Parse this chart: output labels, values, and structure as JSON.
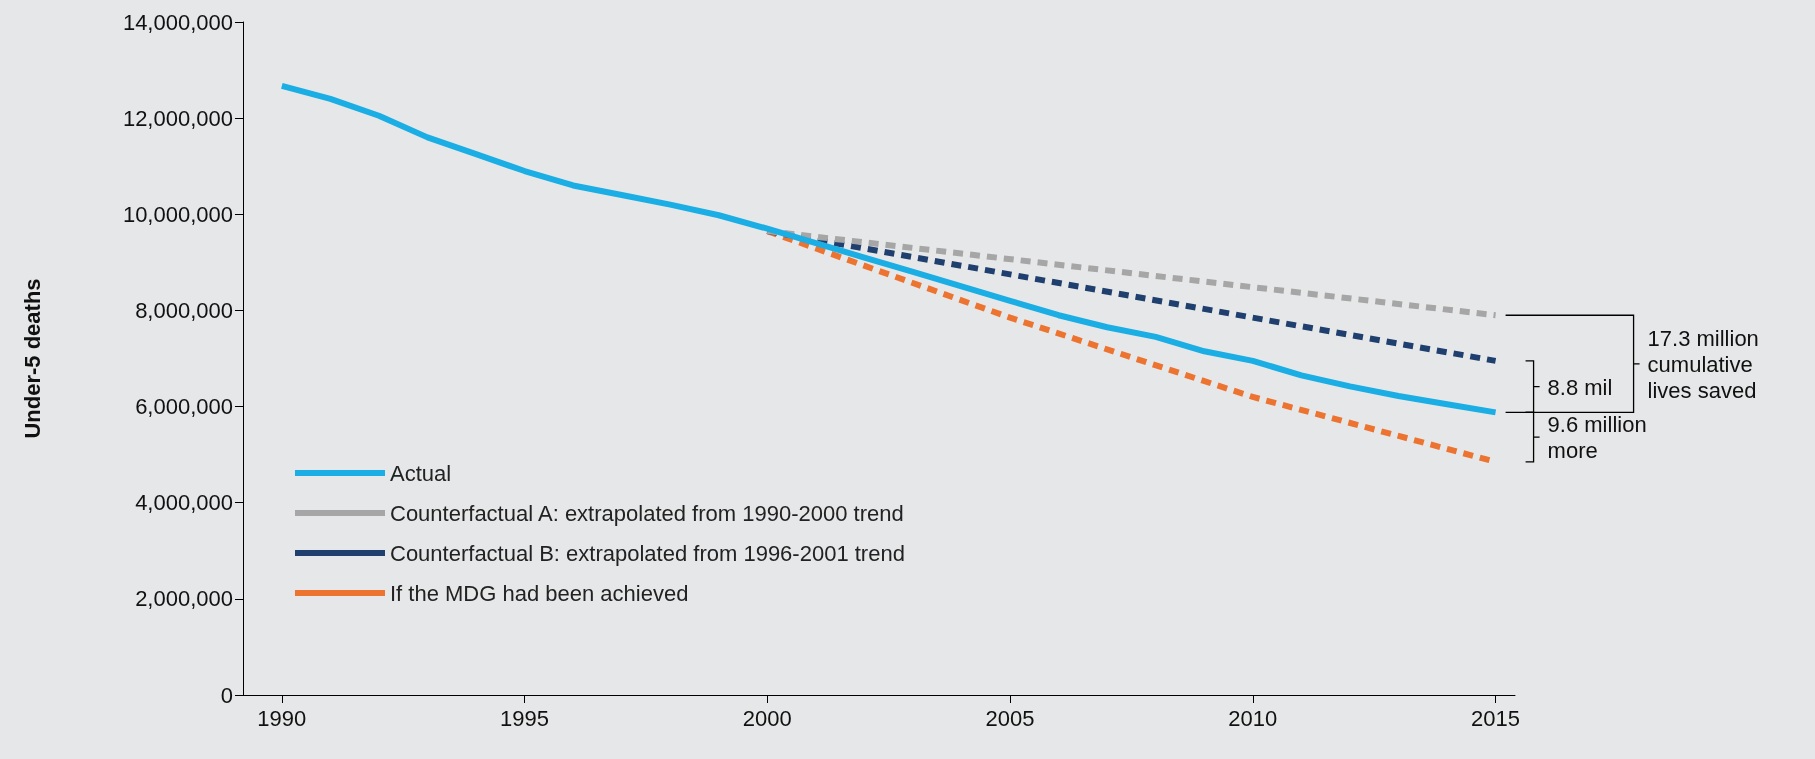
{
  "chart_data": {
    "type": "line",
    "ylabel": "Under-5 deaths",
    "xlim": [
      1989.2,
      2015.4
    ],
    "xticks": [
      1990,
      1995,
      2000,
      2005,
      2010,
      2015
    ],
    "ylim": [
      0,
      14000000
    ],
    "yticks": [
      0,
      {
        "value": 2000000,
        "label": "2,000,000"
      },
      {
        "value": 4000000,
        "label": "4,000,000"
      },
      {
        "value": 6000000,
        "label": "6,000,000"
      },
      {
        "value": 8000000,
        "label": "8,000,000"
      },
      {
        "value": 10000000,
        "label": "10,000,000"
      },
      {
        "value": 12000000,
        "label": "12,000,000"
      },
      {
        "value": 14000000,
        "label": "14,000,000"
      }
    ],
    "grid": false,
    "legend": "bottom left",
    "marker": "none",
    "series": [
      {
        "name": "Actual",
        "color": "#1aaee5",
        "line_style": "solid",
        "x": [
          1990,
          1991,
          1992,
          1993,
          1994,
          1995,
          1996,
          1997,
          1998,
          1999,
          2000,
          2001,
          2002,
          2003,
          2004,
          2005,
          2006,
          2007,
          2008,
          2009,
          2010,
          2011,
          2012,
          2013,
          2014,
          2015
        ],
        "values": [
          12670000,
          12400000,
          12050000,
          11600000,
          11250000,
          10900000,
          10600000,
          10400000,
          10200000,
          9980000,
          9700000,
          9400000,
          9100000,
          8800000,
          8500000,
          8200000,
          7900000,
          7650000,
          7450000,
          7150000,
          6950000,
          6650000,
          6420000,
          6220000,
          6050000,
          5880000
        ]
      },
      {
        "name": "Counterfactual A: extrapolated from 1990-2000 trend",
        "color": "#a6a6a6",
        "line_style": "dashed",
        "x": [
          2000,
          2015
        ],
        "values": [
          9650000,
          7900000
        ]
      },
      {
        "name": "Counterfactual B: extrapolated from 1996-2001 trend",
        "color": "#1f3f6e",
        "line_style": "dashed",
        "x": [
          2000,
          2015
        ],
        "values": [
          9650000,
          6950000
        ]
      },
      {
        "name": "If the MDG had been achieved",
        "color": "#ec7330",
        "line_style": "dashed",
        "x": [
          2000,
          2005,
          2010,
          2015
        ],
        "values": [
          9650000,
          7850000,
          6200000,
          4850000
        ]
      }
    ],
    "annotations": [
      "17.3 million\ncumulative\nlives saved",
      "8.8 mil",
      "9.6 million\nmore"
    ]
  }
}
